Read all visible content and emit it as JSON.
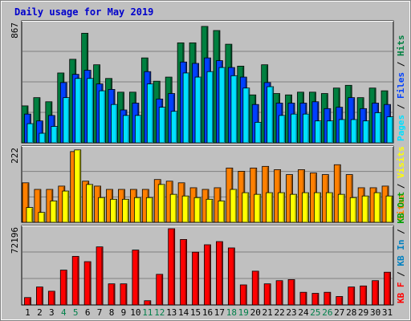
{
  "title": "Daily usage for May 2019",
  "colors": {
    "background": "#c0c0c0",
    "frame": "#ffffff",
    "title": "#0000cc",
    "hits": "#008040",
    "files": "#0040ff",
    "pages": "#00e0ff",
    "visits": "#ffff00",
    "sites": "#ff8000",
    "kb_in": "#0080c0",
    "kb_out": "#00a000",
    "kb_f": "#ff0000",
    "weekend_day_label": "#00804a",
    "gridline": "#808080",
    "axis_text": "#000000"
  },
  "chart_data": [
    {
      "type": "bar",
      "name": "hits-files-pages",
      "axis_max_label": "867",
      "ylim": [
        0,
        867
      ],
      "right_labels": [
        {
          "text": "Pages",
          "color": "#00e0ff"
        },
        {
          "text": " / ",
          "color": "#000000"
        },
        {
          "text": "Files",
          "color": "#0040ff"
        },
        {
          "text": " / ",
          "color": "#000000"
        },
        {
          "text": "Hits",
          "color": "#008040"
        }
      ],
      "categories": [
        "1",
        "2",
        "3",
        "4",
        "5",
        "6",
        "7",
        "8",
        "9",
        "10",
        "11",
        "12",
        "13",
        "14",
        "15",
        "16",
        "17",
        "18",
        "19",
        "20",
        "21",
        "22",
        "23",
        "24",
        "25",
        "26",
        "27",
        "28",
        "29",
        "30",
        "31"
      ],
      "series": [
        {
          "name": "Hits",
          "color": "#008040",
          "values": [
            270,
            330,
            300,
            510,
            610,
            800,
            570,
            470,
            370,
            370,
            620,
            450,
            480,
            730,
            730,
            850,
            820,
            720,
            560,
            350,
            570,
            360,
            350,
            370,
            370,
            360,
            400,
            420,
            330,
            400,
            380
          ]
        },
        {
          "name": "Files",
          "color": "#0040ff",
          "values": [
            210,
            160,
            200,
            440,
            500,
            530,
            430,
            390,
            240,
            290,
            520,
            320,
            360,
            590,
            580,
            620,
            600,
            550,
            480,
            280,
            440,
            290,
            290,
            290,
            300,
            250,
            260,
            330,
            250,
            290,
            280
          ]
        },
        {
          "name": "Pages",
          "color": "#00e0ff",
          "values": [
            140,
            70,
            120,
            330,
            470,
            470,
            380,
            280,
            200,
            200,
            430,
            260,
            230,
            510,
            480,
            520,
            550,
            490,
            400,
            150,
            410,
            200,
            210,
            210,
            160,
            160,
            170,
            170,
            160,
            220,
            190
          ]
        }
      ]
    },
    {
      "type": "bar",
      "name": "sites-visits",
      "axis_max_label": "222",
      "ylim": [
        0,
        222
      ],
      "right_labels": [
        {
          "text": "Sites",
          "color": "#ff8000"
        },
        {
          "text": " / ",
          "color": "#000000"
        },
        {
          "text": "Visits",
          "color": "#ffff00"
        }
      ],
      "categories": [
        "1",
        "2",
        "3",
        "4",
        "5",
        "6",
        "7",
        "8",
        "9",
        "10",
        "11",
        "12",
        "13",
        "14",
        "15",
        "16",
        "17",
        "18",
        "19",
        "20",
        "21",
        "22",
        "23",
        "24",
        "25",
        "26",
        "27",
        "28",
        "29",
        "30",
        "31"
      ],
      "series": [
        {
          "name": "Sites",
          "color": "#ff8000",
          "values": [
            120,
            100,
            100,
            110,
            215,
            125,
            110,
            100,
            100,
            100,
            100,
            130,
            125,
            120,
            105,
            100,
            105,
            165,
            155,
            165,
            170,
            160,
            145,
            160,
            150,
            145,
            175,
            145,
            105,
            105,
            110
          ]
        },
        {
          "name": "Visits",
          "color": "#ffff00",
          "values": [
            45,
            30,
            65,
            95,
            220,
            115,
            75,
            70,
            70,
            75,
            75,
            115,
            85,
            80,
            75,
            70,
            65,
            100,
            90,
            85,
            90,
            90,
            85,
            90,
            90,
            90,
            85,
            75,
            80,
            90,
            80
          ]
        }
      ]
    },
    {
      "type": "bar",
      "name": "kbytes",
      "axis_max_label": "72196",
      "ylim": [
        0,
        72196
      ],
      "right_labels": [
        {
          "text": "KB F",
          "color": "#ff0000"
        },
        {
          "text": " / ",
          "color": "#000000"
        },
        {
          "text": "KB In",
          "color": "#0080c0"
        },
        {
          "text": " / ",
          "color": "#000000"
        },
        {
          "text": "KB Out",
          "color": "#00a000"
        }
      ],
      "categories": [
        "1",
        "2",
        "3",
        "4",
        "5",
        "6",
        "7",
        "8",
        "9",
        "10",
        "11",
        "12",
        "13",
        "14",
        "15",
        "16",
        "17",
        "18",
        "19",
        "20",
        "21",
        "22",
        "23",
        "24",
        "25",
        "26",
        "27",
        "28",
        "29",
        "30",
        "31"
      ],
      "series": [
        {
          "name": "KB F",
          "color": "#ff0000",
          "values": [
            7000,
            17000,
            13000,
            33000,
            46000,
            41000,
            55000,
            20000,
            20000,
            52000,
            4000,
            29000,
            72196,
            62000,
            50000,
            57000,
            60000,
            54000,
            19000,
            32000,
            20000,
            23000,
            24000,
            12000,
            11000,
            12000,
            8000,
            17000,
            18000,
            23000,
            31000
          ]
        }
      ]
    }
  ],
  "day_labels": [
    "1",
    "2",
    "3",
    "4",
    "5",
    "6",
    "7",
    "8",
    "9",
    "10",
    "11",
    "12",
    "13",
    "14",
    "15",
    "16",
    "17",
    "18",
    "19",
    "20",
    "21",
    "22",
    "23",
    "24",
    "25",
    "26",
    "27",
    "28",
    "29",
    "30",
    "31"
  ],
  "weekend_days": [
    "4",
    "5",
    "11",
    "12",
    "18",
    "19",
    "25",
    "26"
  ]
}
